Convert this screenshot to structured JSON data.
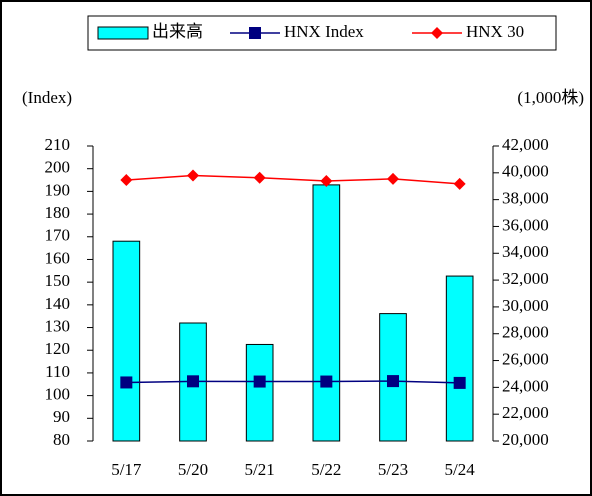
{
  "chart_data": {
    "type": "bar_line",
    "y_label": "(Index)",
    "y2_label": "(1,000株)",
    "categories": [
      "5/17",
      "5/20",
      "5/21",
      "5/22",
      "5/23",
      "5/24"
    ],
    "series": [
      {
        "name": "出来高",
        "type": "bar",
        "axis": "y2",
        "color": "#00ffff",
        "values": [
          34900,
          28800,
          27200,
          39100,
          29500,
          32300
        ]
      },
      {
        "name": "HNX Index",
        "type": "line",
        "marker": "square",
        "color": "#000080",
        "values": [
          105.8,
          106.3,
          106.2,
          106.2,
          106.4,
          105.6
        ]
      },
      {
        "name": "HNX 30",
        "type": "line",
        "marker": "diamond",
        "color": "#ff0000",
        "values": [
          195,
          197,
          196,
          194.6,
          195.5,
          193.3
        ]
      }
    ],
    "ylim": [
      80,
      210
    ],
    "yticks": [
      80,
      90,
      100,
      110,
      120,
      130,
      140,
      150,
      160,
      170,
      180,
      190,
      200,
      210
    ],
    "y2lim": [
      20000,
      42000
    ],
    "y2ticks": [
      {
        "value": 20000,
        "label": "20,000"
      },
      {
        "value": 22000,
        "label": "22,000"
      },
      {
        "value": 24000,
        "label": "24,000"
      },
      {
        "value": 26000,
        "label": "26,000"
      },
      {
        "value": 28000,
        "label": "28,000"
      },
      {
        "value": 30000,
        "label": "30,000"
      },
      {
        "value": 32000,
        "label": "32,000"
      },
      {
        "value": 34000,
        "label": "34,000"
      },
      {
        "value": 36000,
        "label": "36,000"
      },
      {
        "value": 38000,
        "label": "38,000"
      },
      {
        "value": 40000,
        "label": "40,000"
      },
      {
        "value": 42000,
        "label": "42,000"
      }
    ],
    "legend": "top"
  }
}
